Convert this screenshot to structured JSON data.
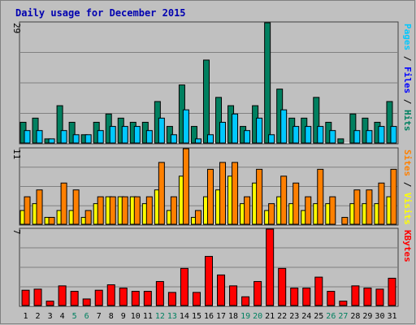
{
  "chart_data": {
    "type": "bar",
    "title": "Daily usage for December 2015",
    "categories": [
      "1",
      "2",
      "3",
      "4",
      "5",
      "6",
      "7",
      "8",
      "9",
      "10",
      "11",
      "12",
      "13",
      "14",
      "15",
      "16",
      "17",
      "18",
      "19",
      "20",
      "21",
      "22",
      "23",
      "24",
      "25",
      "26",
      "27",
      "28",
      "29",
      "30",
      "31"
    ],
    "weekend_days": [
      "5",
      "6",
      "12",
      "13",
      "19",
      "20",
      "26",
      "27"
    ],
    "panels": [
      {
        "name": "pages-files-hits",
        "ymax": 29,
        "ymax_label": "29",
        "side_labels": [
          {
            "text": "Pages",
            "color": "#00c8ff"
          },
          {
            "text": " / ",
            "color": "#000000"
          },
          {
            "text": "Files",
            "color": "#0000ff"
          },
          {
            "text": " / ",
            "color": "#000000"
          },
          {
            "text": "Hits",
            "color": "#008060"
          }
        ],
        "series": [
          {
            "name": "Hits",
            "color": "#008060",
            "values": [
              5,
              6,
              1,
              9,
              5,
              2,
              5,
              7,
              6,
              5,
              5,
              10,
              4,
              14,
              4,
              20,
              11,
              9,
              4,
              9,
              29,
              13,
              6,
              6,
              11,
              5,
              1,
              7,
              6,
              5,
              10
            ]
          },
          {
            "name": "Pages",
            "color": "#00c8ff",
            "values": [
              3,
              3,
              1,
              3,
              2,
              2,
              3,
              4,
              4,
              4,
              3,
              6,
              2,
              8,
              1,
              2,
              5,
              7,
              3,
              6,
              2,
              8,
              4,
              4,
              4,
              3,
              0,
              3,
              3,
              4,
              4
            ]
          }
        ]
      },
      {
        "name": "visits-sites",
        "ymax": 11,
        "ymax_label": "11",
        "side_labels": [
          {
            "text": "Sites",
            "color": "#ff8000"
          },
          {
            "text": " / ",
            "color": "#000000"
          },
          {
            "text": "Visits",
            "color": "#ffff00"
          }
        ],
        "series": [
          {
            "name": "Visits",
            "color": "#ffff00",
            "values": [
              2,
              3,
              1,
              2,
              2,
              1,
              3,
              4,
              4,
              4,
              3,
              5,
              2,
              7,
              1,
              4,
              5,
              7,
              3,
              6,
              2,
              4,
              3,
              2,
              3,
              3,
              0,
              3,
              3,
              3,
              4
            ]
          },
          {
            "name": "Sites",
            "color": "#ff8000",
            "values": [
              4,
              5,
              1,
              6,
              5,
              2,
              4,
              4,
              4,
              4,
              4,
              9,
              4,
              11,
              2,
              8,
              9,
              9,
              4,
              8,
              3,
              7,
              6,
              4,
              8,
              4,
              1,
              5,
              5,
              6,
              8
            ]
          }
        ]
      },
      {
        "name": "kbytes",
        "ymax": 7,
        "ymax_label": "7",
        "side_labels": [
          {
            "text": "KBytes",
            "color": "#ff0000"
          }
        ],
        "series": [
          {
            "name": "KBytes",
            "color": "#ff0000",
            "values": [
              1.4,
              1.5,
              0.4,
              1.8,
              1.3,
              0.6,
              1.4,
              1.9,
              1.6,
              1.3,
              1.3,
              2.2,
              1.2,
              3.4,
              1.2,
              4.5,
              2.8,
              1.8,
              0.8,
              2.2,
              7,
              3.4,
              1.6,
              1.6,
              2.6,
              1.3,
              0.4,
              1.8,
              1.6,
              1.5,
              2.5
            ]
          }
        ]
      }
    ]
  },
  "colors": {
    "background": "#c0c0c0",
    "panel": "#b8b8b8",
    "grid": "#808080",
    "title": "#0000b0",
    "weekday_label": "#000000",
    "weekend_label": "#008060"
  }
}
